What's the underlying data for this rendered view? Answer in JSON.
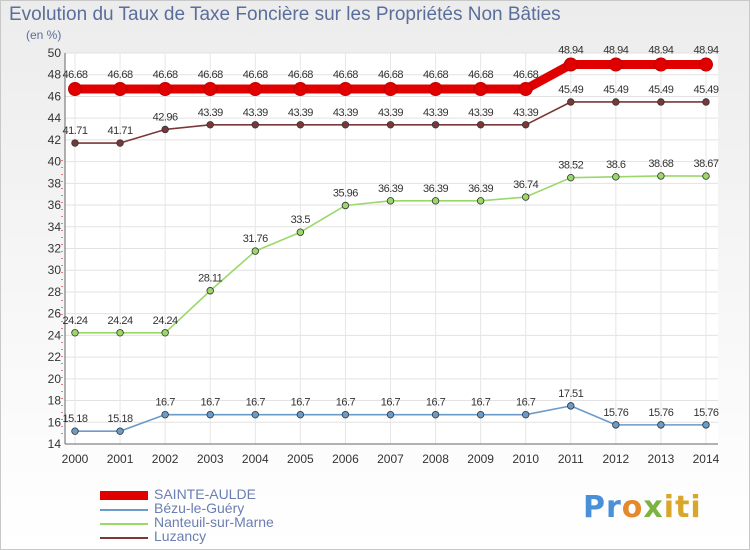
{
  "chart_data": {
    "type": "line",
    "title": "Evolution du Taux de Taxe Foncière sur les Propriétés Non Bâties",
    "ylabel": "(en %)",
    "xlabel": "",
    "ylim": [
      14,
      50
    ],
    "yticks": [
      14,
      16,
      18,
      20,
      22,
      24,
      26,
      28,
      30,
      32,
      34,
      36,
      38,
      40,
      42,
      44,
      46,
      48,
      50
    ],
    "x": [
      "2000",
      "2001",
      "2002",
      "2003",
      "2004",
      "2005",
      "2006",
      "2007",
      "2008",
      "2009",
      "2010",
      "2011",
      "2012",
      "2013",
      "2014"
    ],
    "grid": true,
    "series": [
      {
        "name": "SAINTE-AULDE",
        "color": "#e00000",
        "values": [
          46.68,
          46.68,
          46.68,
          46.68,
          46.68,
          46.68,
          46.68,
          46.68,
          46.68,
          46.68,
          46.68,
          48.94,
          48.94,
          48.94,
          48.94
        ],
        "labels": [
          "46.68",
          "46.68",
          "46.68",
          "46.68",
          "46.68",
          "46.68",
          "46.68",
          "46.68",
          "46.68",
          "46.68",
          "46.68",
          "48.94",
          "48.94",
          "48.94",
          "48.94"
        ]
      },
      {
        "name": "Bézu-le-Guéry",
        "color": "#6b9bc9",
        "values": [
          15.18,
          15.18,
          16.7,
          16.7,
          16.7,
          16.7,
          16.7,
          16.7,
          16.7,
          16.7,
          16.7,
          17.51,
          15.76,
          15.76,
          15.76
        ],
        "labels": [
          "15.18",
          "15.18",
          "16.7",
          "16.7",
          "16.7",
          "16.7",
          "16.7",
          "16.7",
          "16.7",
          "16.7",
          "16.7",
          "17.51",
          "15.76",
          "15.76",
          "15.76"
        ]
      },
      {
        "name": "Nanteuil-sur-Marne",
        "color": "#9ad86a",
        "values": [
          24.24,
          24.24,
          24.24,
          28.11,
          31.76,
          33.5,
          35.96,
          36.39,
          36.39,
          36.39,
          36.74,
          38.52,
          38.6,
          38.68,
          38.67
        ],
        "labels": [
          "24.24",
          "24.24",
          "24.24",
          "28.11",
          "31.76",
          "33.5",
          "35.96",
          "36.39",
          "36.39",
          "36.39",
          "36.74",
          "38.52",
          "38.6",
          "38.68",
          "38.67"
        ]
      },
      {
        "name": "Luzancy",
        "color": "#7a3838",
        "values": [
          41.71,
          41.71,
          42.96,
          43.39,
          43.39,
          43.39,
          43.39,
          43.39,
          43.39,
          43.39,
          43.39,
          45.49,
          45.49,
          45.49,
          45.49
        ],
        "labels": [
          "41.71",
          "41.71",
          "42.96",
          "43.39",
          "43.39",
          "43.39",
          "43.39",
          "43.39",
          "43.39",
          "43.39",
          "43.39",
          "45.49",
          "45.49",
          "45.49",
          "45.49"
        ]
      }
    ]
  },
  "logo": {
    "parts": [
      "Pr",
      "o",
      "x",
      "iti"
    ]
  }
}
